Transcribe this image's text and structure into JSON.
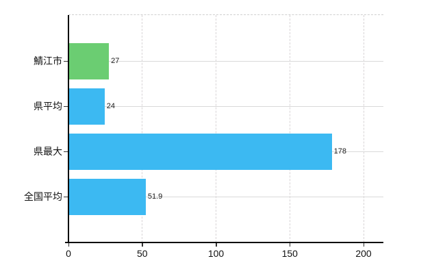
{
  "chart_data": {
    "type": "bar",
    "orientation": "horizontal",
    "title": "",
    "xlabel": "",
    "ylabel": "",
    "categories": [
      "鯖江市",
      "県平均",
      "県最大",
      "全国平均"
    ],
    "values": [
      27,
      24,
      178,
      51.9
    ],
    "value_labels": [
      "27",
      "24",
      "178",
      "51.9"
    ],
    "bar_colors": [
      "#6bcd72",
      "#3cb9f2",
      "#3cb9f2",
      "#3cb9f2"
    ],
    "xlim": [
      0,
      200
    ],
    "x_ticks": [
      0,
      50,
      100,
      150,
      200
    ],
    "x_tick_labels": [
      "0",
      "50",
      "100",
      "150",
      "200"
    ],
    "grid": true,
    "legend": false
  },
  "colors": {
    "highlight_bar": "#6bcd72",
    "default_bar": "#3cb9f2",
    "grid": "#d9d9d9",
    "axis": "#000000",
    "text": "#1a1a1a",
    "background": "#ffffff"
  }
}
